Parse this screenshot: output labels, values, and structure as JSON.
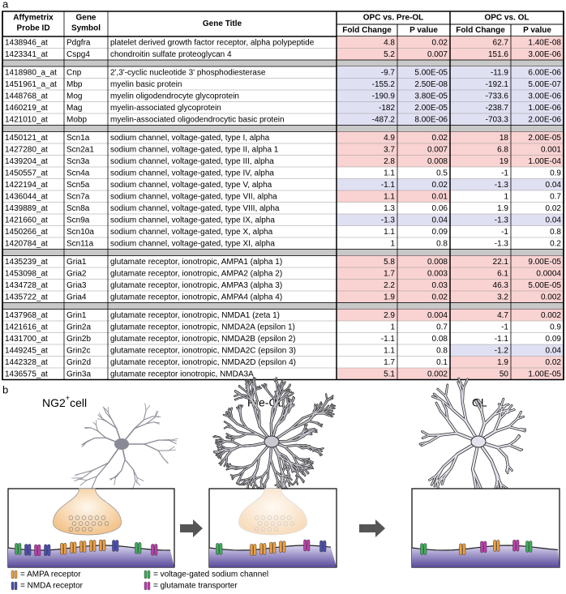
{
  "panel_a": "a",
  "panel_b": "b",
  "table": {
    "header": {
      "probe": [
        "Affymetrix",
        "Probe ID"
      ],
      "symbol": [
        "Gene",
        "Symbol"
      ],
      "title": "Gene Title",
      "comparisons": [
        "OPC vs. Pre-OL",
        "OPC vs. OL"
      ],
      "fold": "Fold Change",
      "p": "P value"
    },
    "groups": [
      [
        {
          "cells": [
            "1438946_at",
            "Pdgfra",
            "platelet derived growth factor receptor, alpha polypeptide",
            "4.8",
            "0.02",
            "62.7",
            "1.40E-08"
          ],
          "colors": [
            "#f9d2d2",
            "#f9d2d2"
          ]
        },
        {
          "cells": [
            "1423341_at",
            "Cspg4",
            "chondroitin sulfate proteoglycan 4",
            "5.2",
            "0.007",
            "151.6",
            "3.00E-06"
          ],
          "colors": [
            "#f9d2d2",
            "#f9d2d2"
          ]
        }
      ],
      [
        {
          "cells": [
            "1418980_a_at",
            "Cnp",
            "2',3'-cyclic nucleotide 3' phosphodiesterase",
            "-9.7",
            "5.00E-05",
            "-11.9",
            "6.00E-06"
          ],
          "colors": [
            "#e0e0f3",
            "#e0e0f3"
          ]
        },
        {
          "cells": [
            "1451961_a_at",
            "Mbp",
            "myelin basic protein",
            "-155.2",
            "2.50E-08",
            "-192.1",
            "5.00E-07"
          ],
          "colors": [
            "#e0e0f3",
            "#e0e0f3"
          ]
        },
        {
          "cells": [
            "1448768_at",
            "Mog",
            "myelin oligodendrocyte glycoprotein",
            "-190.9",
            "3.80E-05",
            "-733.6",
            "3.00E-06"
          ],
          "colors": [
            "#e0e0f3",
            "#e0e0f3"
          ]
        },
        {
          "cells": [
            "1460219_at",
            "Mag",
            "myelin-associated glycoprotein",
            "-182",
            "2.00E-05",
            "-238.7",
            "1.00E-06"
          ],
          "colors": [
            "#e0e0f3",
            "#e0e0f3"
          ]
        },
        {
          "cells": [
            "1421010_at",
            "Mobp",
            "myelin-associated oligodendrocytic basic protein",
            "-487.2",
            "8.00E-06",
            "-703.3",
            "2.00E-06"
          ],
          "colors": [
            "#e0e0f3",
            "#e0e0f3"
          ]
        }
      ],
      [
        {
          "cells": [
            "1450121_at",
            "Scn1a",
            "sodium channel, voltage-gated, type I, alpha",
            "4.9",
            "0.02",
            "18",
            "2.00E-05"
          ],
          "colors": [
            "#f9d2d2",
            "#f9d2d2"
          ]
        },
        {
          "cells": [
            "1427280_at",
            "Scn2a1",
            "sodium channel, voltage-gated, type II, alpha 1",
            "3.7",
            "0.007",
            "6.8",
            "0.001"
          ],
          "colors": [
            "#f9d2d2",
            "#f9d2d2"
          ]
        },
        {
          "cells": [
            "1439204_at",
            "Scn3a",
            "sodium channel, voltage-gated, type III, alpha",
            "2.8",
            "0.008",
            "19",
            "1.00E-04"
          ],
          "colors": [
            "#f9d2d2",
            "#f9d2d2"
          ]
        },
        {
          "cells": [
            "1450557_at",
            "Scn4a",
            "sodium channel, voltage-gated, type IV, alpha",
            "1.1",
            "0.5",
            "-1",
            "0.9"
          ],
          "colors": [
            null,
            null
          ]
        },
        {
          "cells": [
            "1422194_at",
            "Scn5a",
            "sodium channel, voltage-gated, type V, alpha",
            "-1.1",
            "0.02",
            "-1.3",
            "0.04"
          ],
          "colors": [
            "#e0e0f3",
            "#e0e0f3"
          ]
        },
        {
          "cells": [
            "1436044_at",
            "Scn7a",
            "sodium channel, voltage-gated, type VII, alpha",
            "1.1",
            "0.01",
            "1",
            "0.7"
          ],
          "colors": [
            "#f9d2d2",
            null
          ]
        },
        {
          "cells": [
            "1439889_at",
            "Scn8a",
            "sodium channel, voltage-gated, type VIII, alpha",
            "1.3",
            "0.06",
            "1.9",
            "0.02"
          ],
          "colors": [
            null,
            null
          ]
        },
        {
          "cells": [
            "1421660_at",
            "Scn9a",
            "sodium channel, voltage-gated, type IX, alpha",
            "-1.3",
            "0.04",
            "-1.3",
            "0.04"
          ],
          "colors": [
            "#e0e0f3",
            "#e0e0f3"
          ]
        },
        {
          "cells": [
            "1450266_at",
            "Scn10a",
            "sodium channel, voltage-gated, type X, alpha",
            "1.1",
            "0.09",
            "-1",
            "0.8"
          ],
          "colors": [
            null,
            null
          ]
        },
        {
          "cells": [
            "1420784_at",
            "Scn11a",
            "sodium channel, voltage-gated, type XI, alpha",
            "1",
            "0.8",
            "-1.3",
            "0.2"
          ],
          "colors": [
            null,
            null
          ]
        }
      ],
      [
        {
          "cells": [
            "1435239_at",
            "Gria1",
            "glutamate receptor, ionotropic, AMPA1 (alpha 1)",
            "5.8",
            "0.008",
            "22.1",
            "9.00E-05"
          ],
          "colors": [
            "#f9d2d2",
            "#f9d2d2"
          ]
        },
        {
          "cells": [
            "1453098_at",
            "Gria2",
            "glutamate receptor, ionotropic, AMPA2 (alpha 2)",
            "1.7",
            "0.003",
            "6.1",
            "0.0004"
          ],
          "colors": [
            "#f9d2d2",
            "#f9d2d2"
          ]
        },
        {
          "cells": [
            "1434728_at",
            "Gria3",
            "glutamate receptor, ionotropic, AMPA3 (alpha 3)",
            "2.2",
            "0.03",
            "46.3",
            "5.00E-05"
          ],
          "colors": [
            "#f9d2d2",
            "#f9d2d2"
          ]
        },
        {
          "cells": [
            "1435722_at",
            "Gria4",
            "glutamate receptor, ionotropic, AMPA4 (alpha 4)",
            "1.9",
            "0.02",
            "3.2",
            "0.002"
          ],
          "colors": [
            "#f9d2d2",
            "#f9d2d2"
          ]
        }
      ],
      [
        {
          "cells": [
            "1437968_at",
            "Grin1",
            "glutamate receptor, ionotropic, NMDA1 (zeta 1)",
            "2.9",
            "0.004",
            "4.7",
            "0.002"
          ],
          "colors": [
            "#f9d2d2",
            "#f9d2d2"
          ]
        },
        {
          "cells": [
            "1421616_at",
            "Grin2a",
            "glutamate receptor, ionotropic, NMDA2A (epsilon 1)",
            "1",
            "0.7",
            "-1",
            "0.9"
          ],
          "colors": [
            null,
            null
          ]
        },
        {
          "cells": [
            "1431700_at",
            "Grin2b",
            "glutamate receptor, ionotropic, NMDA2B (epsilon 2)",
            "-1.1",
            "0.08",
            "-1.1",
            "0.09"
          ],
          "colors": [
            null,
            null
          ]
        },
        {
          "cells": [
            "1449245_at",
            "Grin2c",
            "glutamate receptor, ionotropic, NMDA2C (epsilon 3)",
            "1.1",
            "0.8",
            "-1.2",
            "0.04"
          ],
          "colors": [
            null,
            "#e0e0f3"
          ]
        },
        {
          "cells": [
            "1442328_at",
            "Grin2d",
            "glutamate receptor, ionotropic, NMDA2D (epsilon 4)",
            "1.7",
            "0.1",
            "1.9",
            "0.02"
          ],
          "colors": [
            null,
            "#f9d2d2"
          ]
        },
        {
          "cells": [
            "1436575_at",
            "Grin3a",
            "glutamate receptor ionotropic, NMDA3A",
            "5.1",
            "0.002",
            "50",
            "1.00E-05"
          ],
          "colors": [
            "#f9d2d2",
            "#f9d2d2"
          ]
        }
      ]
    ]
  },
  "diagram": {
    "stages": [
      {
        "label": "NG2",
        "sup": "+",
        "suffix": "cell"
      },
      {
        "label": "Pre-OL"
      },
      {
        "label": "OL"
      }
    ],
    "legend": [
      {
        "label": "= AMPA receptor",
        "color": "#f0a040"
      },
      {
        "label": "= voltage-gated sodium channel",
        "color": "#3fae5c"
      },
      {
        "label": "= NMDA receptor",
        "color": "#4a4fb0"
      },
      {
        "label": "= glutamate transporter",
        "color": "#c03cb0"
      }
    ]
  }
}
